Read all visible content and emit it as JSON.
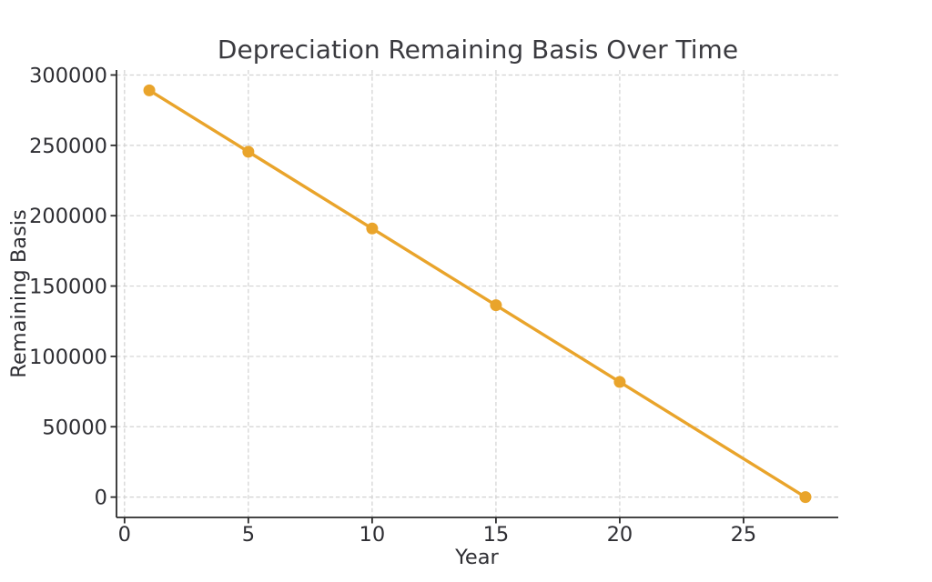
{
  "page": {
    "background_color": "#ffffff"
  },
  "chart_data": {
    "type": "line",
    "title": "Depreciation Remaining Basis Over Time",
    "xlabel": "Year",
    "ylabel": "Remaining Basis",
    "series": [
      {
        "name": "Remaining Basis",
        "x": [
          1,
          5,
          10,
          15,
          20,
          27.5
        ],
        "y": [
          289091,
          245455,
          190909,
          136364,
          81818,
          0
        ]
      }
    ],
    "xticks": [
      0,
      5,
      10,
      15,
      20,
      25
    ],
    "yticks": [
      0,
      50000,
      100000,
      150000,
      200000,
      250000,
      300000
    ],
    "xtick_labels": [
      "0",
      "5",
      "10",
      "15",
      "20",
      "25"
    ],
    "ytick_labels": [
      "0",
      "50000",
      "100000",
      "150000",
      "200000",
      "250000",
      "300000"
    ],
    "xlim": [
      -0.325,
      28.825
    ],
    "ylim": [
      -14455,
      303545
    ],
    "grid": true,
    "grid_style": "dashed",
    "legend": false,
    "marker": "circle",
    "colors": {
      "line": "#E9A42B",
      "marker": "#E9A42B",
      "grid": "#d2d2d2",
      "spine": "#2b2b2b",
      "tick": "#2b2b2b",
      "title_text": "#3a3a3f",
      "tick_text": "#2e2e33"
    }
  }
}
